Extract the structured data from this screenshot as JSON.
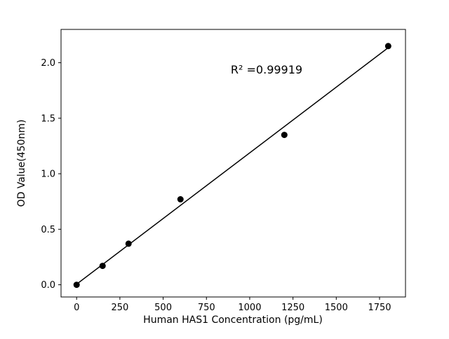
{
  "chart_data": {
    "type": "scatter",
    "title": "",
    "xlabel": "Human HAS1 Concentration (pg/mL)",
    "ylabel": "OD Value(450nm)",
    "annotation": {
      "text": "R² =0.99919"
    },
    "points": [
      {
        "x": 0,
        "y": 0.0
      },
      {
        "x": 150,
        "y": 0.17
      },
      {
        "x": 300,
        "y": 0.37
      },
      {
        "x": 600,
        "y": 0.77
      },
      {
        "x": 1200,
        "y": 1.35
      },
      {
        "x": 1800,
        "y": 2.15
      }
    ],
    "fit_line": {
      "x1": 0,
      "y1": 0.005,
      "x2": 1800,
      "y2": 2.135
    },
    "x_ticks": [
      0,
      250,
      500,
      750,
      1000,
      1250,
      1500,
      1750
    ],
    "y_ticks": [
      0.0,
      0.5,
      1.0,
      1.5,
      2.0
    ],
    "y_tick_labels": [
      "0.0",
      "0.5",
      "1.0",
      "1.5",
      "2.0"
    ],
    "xlim": [
      -90,
      1900
    ],
    "ylim": [
      -0.11,
      2.3
    ],
    "marker_color": "#000000",
    "line_color": "#000000",
    "axes_color": "#000000",
    "background_color": "#ffffff",
    "grid": false,
    "legend": null
  }
}
